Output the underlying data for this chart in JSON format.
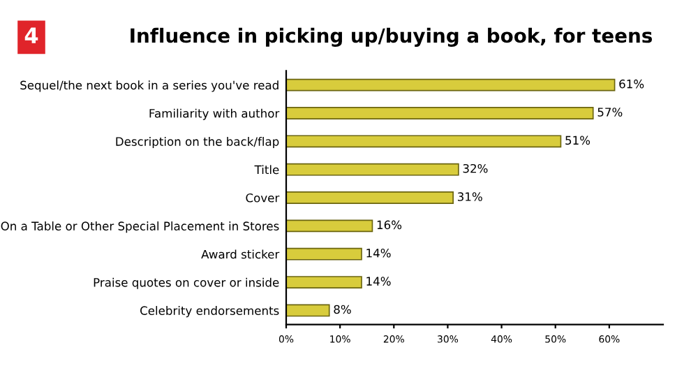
{
  "chart_data": {
    "type": "bar",
    "orientation": "horizontal",
    "title": "Influence in picking up/buying a book, for teens",
    "annotations": [
      "4"
    ],
    "categories": [
      "Sequel/the next book in a series you've read",
      "Familiarity with author",
      "Description on the back/flap",
      "Title",
      "Cover",
      "On a Table or Other Special Placement in Stores",
      "Award sticker",
      "Praise quotes on cover or inside",
      "Celebrity endorsements"
    ],
    "values": [
      61,
      57,
      51,
      32,
      31,
      16,
      14,
      14,
      8
    ],
    "value_labels": [
      "61%",
      "57%",
      "51%",
      "32%",
      "31%",
      "16%",
      "14%",
      "14%",
      "8%"
    ],
    "color": "#d8cc3c",
    "xlim": [
      0,
      70
    ],
    "xticks": [
      {
        "value": 0,
        "label": "0%"
      },
      {
        "value": 10,
        "label": "10%"
      },
      {
        "value": 20,
        "label": "20%"
      },
      {
        "value": 30,
        "label": "30%"
      },
      {
        "value": 40,
        "label": "40%"
      },
      {
        "value": 50,
        "label": "50%"
      },
      {
        "value": 60,
        "label": "60%"
      }
    ],
    "grid": false,
    "legend": false
  }
}
